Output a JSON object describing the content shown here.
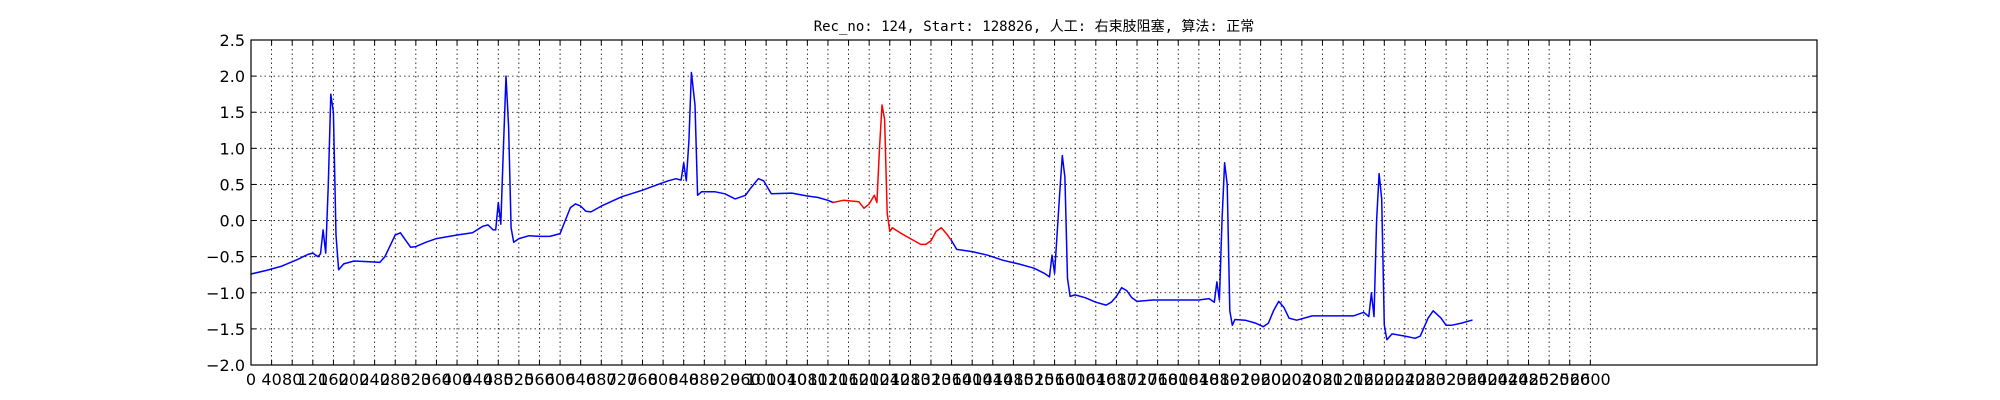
{
  "chart_data": {
    "type": "line",
    "title": "Rec_no: 124, Start: 128826, 人工: 右束肢阻塞, 算法: 正常",
    "xlabel": "",
    "ylabel": "",
    "xlim": [
      0,
      3040
    ],
    "ylim": [
      -2.0,
      2.5
    ],
    "grid": true,
    "yticks": [
      -2.0,
      -1.5,
      -1.0,
      -0.5,
      0.0,
      0.5,
      1.0,
      1.5,
      2.0,
      2.5
    ],
    "ytick_labels": [
      "−2.0",
      "−1.5",
      "−1.0",
      "−0.5",
      "0.0",
      "0.5",
      "1.0",
      "1.5",
      "2.0",
      "2.5"
    ],
    "xticks": [
      0,
      40,
      80,
      120,
      160,
      200,
      240,
      280,
      320,
      360,
      400,
      440,
      480,
      520,
      560,
      600,
      640,
      680,
      720,
      760,
      800,
      840,
      880,
      920,
      960,
      1000,
      1040,
      1080,
      1120,
      1160,
      1200,
      1240,
      1280,
      1320,
      1360,
      1400,
      1440,
      1480,
      1520,
      1560,
      1600,
      1640,
      1680,
      1720,
      1760,
      1800,
      1840,
      1880,
      1920,
      1960,
      2000,
      2040,
      2080,
      2120,
      2160,
      2200,
      2240,
      2280,
      2320,
      2360,
      2400,
      2440,
      2480,
      2520,
      2560,
      2600
    ],
    "xtick_labels": [
      "0",
      "40",
      "80",
      "120",
      "160",
      "200",
      "240",
      "280",
      "320",
      "360",
      "400",
      "440",
      "480",
      "520",
      "560",
      "600",
      "640",
      "680",
      "720",
      "760",
      "800",
      "840",
      "880",
      "920",
      "960",
      "1000",
      "1040",
      "1080",
      "1120",
      "1160",
      "1200",
      "1240",
      "1280",
      "1320",
      "1360",
      "1400",
      "1440",
      "1480",
      "1520",
      "1560",
      "1600",
      "1640",
      "1680",
      "1720",
      "1760",
      "1800",
      "1840",
      "1880",
      "1920",
      "1960",
      "2000",
      "2040",
      "2080",
      "2120",
      "2160",
      "2200",
      "2240",
      "2280",
      "2320",
      "2360",
      "2400",
      "2440",
      "2480",
      "2520",
      "2560",
      "2600"
    ],
    "series": [
      {
        "color": "#0000ff",
        "points": [
          [
            0,
            -0.74
          ],
          [
            30,
            -0.69
          ],
          [
            60,
            -0.63
          ],
          [
            90,
            -0.54
          ],
          [
            110,
            -0.47
          ],
          [
            120,
            -0.45
          ],
          [
            130,
            -0.5
          ],
          [
            135,
            -0.46
          ],
          [
            140,
            -0.13
          ],
          [
            145,
            -0.45
          ],
          [
            150,
            0.5
          ],
          [
            155,
            1.75
          ],
          [
            160,
            1.5
          ],
          [
            165,
            -0.2
          ],
          [
            170,
            -0.68
          ],
          [
            180,
            -0.6
          ],
          [
            200,
            -0.56
          ],
          [
            230,
            -0.57
          ],
          [
            250,
            -0.58
          ],
          [
            260,
            -0.5
          ],
          [
            270,
            -0.35
          ],
          [
            280,
            -0.2
          ],
          [
            290,
            -0.17
          ],
          [
            300,
            -0.27
          ],
          [
            310,
            -0.37
          ],
          [
            320,
            -0.36
          ],
          [
            340,
            -0.3
          ],
          [
            360,
            -0.25
          ],
          [
            400,
            -0.2
          ],
          [
            430,
            -0.17
          ],
          [
            450,
            -0.08
          ],
          [
            460,
            -0.06
          ],
          [
            470,
            -0.13
          ],
          [
            475,
            -0.13
          ],
          [
            480,
            0.25
          ],
          [
            485,
            -0.05
          ],
          [
            490,
            1.0
          ],
          [
            495,
            2.0
          ],
          [
            500,
            1.3
          ],
          [
            505,
            -0.1
          ],
          [
            510,
            -0.3
          ],
          [
            520,
            -0.25
          ],
          [
            540,
            -0.21
          ],
          [
            560,
            -0.22
          ],
          [
            580,
            -0.22
          ],
          [
            600,
            -0.18
          ],
          [
            610,
            0.0
          ],
          [
            620,
            0.18
          ],
          [
            630,
            0.23
          ],
          [
            640,
            0.2
          ],
          [
            650,
            0.13
          ],
          [
            660,
            0.12
          ],
          [
            680,
            0.2
          ],
          [
            720,
            0.33
          ],
          [
            760,
            0.42
          ],
          [
            790,
            0.5
          ],
          [
            810,
            0.55
          ],
          [
            825,
            0.58
          ],
          [
            835,
            0.56
          ],
          [
            840,
            0.8
          ],
          [
            845,
            0.55
          ],
          [
            850,
            1.1
          ],
          [
            855,
            2.05
          ],
          [
            862,
            1.6
          ],
          [
            867,
            0.35
          ],
          [
            875,
            0.4
          ],
          [
            900,
            0.4
          ],
          [
            920,
            0.37
          ],
          [
            940,
            0.3
          ],
          [
            960,
            0.35
          ],
          [
            970,
            0.45
          ],
          [
            985,
            0.58
          ],
          [
            995,
            0.55
          ],
          [
            1010,
            0.37
          ],
          [
            1050,
            0.38
          ],
          [
            1080,
            0.34
          ],
          [
            1100,
            0.32
          ],
          [
            1120,
            0.28
          ],
          [
            1130,
            0.25
          ]
        ]
      },
      {
        "color": "#ff0000",
        "points": [
          [
            1130,
            0.25
          ],
          [
            1150,
            0.28
          ],
          [
            1180,
            0.26
          ],
          [
            1190,
            0.17
          ],
          [
            1200,
            0.23
          ],
          [
            1210,
            0.35
          ],
          [
            1215,
            0.25
          ],
          [
            1220,
            1.0
          ],
          [
            1225,
            1.6
          ],
          [
            1230,
            1.4
          ],
          [
            1235,
            0.1
          ],
          [
            1240,
            -0.15
          ],
          [
            1245,
            -0.1
          ],
          [
            1260,
            -0.17
          ],
          [
            1280,
            -0.25
          ],
          [
            1300,
            -0.33
          ],
          [
            1310,
            -0.33
          ],
          [
            1320,
            -0.28
          ],
          [
            1330,
            -0.15
          ],
          [
            1340,
            -0.1
          ],
          [
            1350,
            -0.18
          ],
          [
            1360,
            -0.28
          ]
        ]
      },
      {
        "color": "#0000ff",
        "points": [
          [
            1360,
            -0.28
          ],
          [
            1370,
            -0.4
          ],
          [
            1400,
            -0.43
          ],
          [
            1430,
            -0.48
          ],
          [
            1460,
            -0.55
          ],
          [
            1490,
            -0.6
          ],
          [
            1520,
            -0.66
          ],
          [
            1540,
            -0.73
          ],
          [
            1550,
            -0.78
          ],
          [
            1555,
            -0.48
          ],
          [
            1560,
            -0.73
          ],
          [
            1570,
            0.4
          ],
          [
            1575,
            0.9
          ],
          [
            1580,
            0.6
          ],
          [
            1585,
            -0.8
          ],
          [
            1590,
            -1.05
          ],
          [
            1600,
            -1.03
          ],
          [
            1620,
            -1.07
          ],
          [
            1640,
            -1.13
          ],
          [
            1660,
            -1.17
          ],
          [
            1670,
            -1.13
          ],
          [
            1680,
            -1.05
          ],
          [
            1690,
            -0.93
          ],
          [
            1700,
            -0.97
          ],
          [
            1710,
            -1.07
          ],
          [
            1720,
            -1.12
          ],
          [
            1750,
            -1.1
          ],
          [
            1780,
            -1.1
          ],
          [
            1810,
            -1.1
          ],
          [
            1840,
            -1.1
          ],
          [
            1860,
            -1.08
          ],
          [
            1870,
            -1.13
          ],
          [
            1875,
            -0.85
          ],
          [
            1880,
            -1.1
          ],
          [
            1885,
            0.0
          ],
          [
            1890,
            0.8
          ],
          [
            1895,
            0.5
          ],
          [
            1900,
            -1.25
          ],
          [
            1905,
            -1.45
          ],
          [
            1910,
            -1.37
          ],
          [
            1930,
            -1.38
          ],
          [
            1950,
            -1.42
          ],
          [
            1965,
            -1.47
          ],
          [
            1975,
            -1.42
          ],
          [
            1985,
            -1.25
          ],
          [
            1995,
            -1.12
          ],
          [
            2005,
            -1.2
          ],
          [
            2015,
            -1.35
          ],
          [
            2030,
            -1.38
          ],
          [
            2060,
            -1.32
          ],
          [
            2100,
            -1.32
          ],
          [
            2140,
            -1.32
          ],
          [
            2160,
            -1.27
          ],
          [
            2170,
            -1.33
          ],
          [
            2175,
            -1.0
          ],
          [
            2180,
            -1.33
          ],
          [
            2185,
            0.0
          ],
          [
            2190,
            0.65
          ],
          [
            2195,
            0.3
          ],
          [
            2200,
            -1.45
          ],
          [
            2205,
            -1.65
          ],
          [
            2215,
            -1.57
          ],
          [
            2240,
            -1.6
          ],
          [
            2260,
            -1.63
          ],
          [
            2270,
            -1.6
          ],
          [
            2285,
            -1.35
          ],
          [
            2295,
            -1.25
          ],
          [
            2310,
            -1.35
          ],
          [
            2320,
            -1.45
          ],
          [
            2330,
            -1.45
          ],
          [
            2350,
            -1.42
          ],
          [
            2370,
            -1.38
          ]
        ]
      }
    ]
  }
}
